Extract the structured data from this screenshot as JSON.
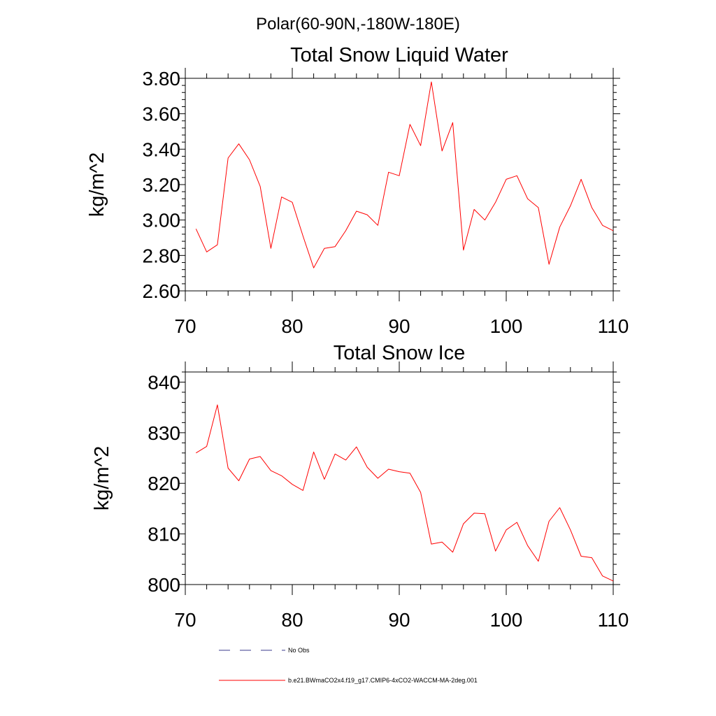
{
  "figure": {
    "title": "Polar(60-90N,-180W-180E)"
  },
  "legend": {
    "placement": "bottom-left",
    "entries": [
      {
        "label": "No Obs",
        "style": "dashed",
        "color": "#3a3a8c"
      },
      {
        "label": "b.e21.BWmaCO2x4.f19_g17.CMIP6-4xCO2-WACCM-MA-2deg.001",
        "style": "solid",
        "color": "#ff0000"
      }
    ]
  },
  "chart_data": [
    {
      "type": "line",
      "title": "Total Snow Liquid Water",
      "xlabel": "",
      "ylabel": "kg/m^2",
      "xlim": [
        70,
        110
      ],
      "ylim": [
        2.6,
        3.8
      ],
      "xticks": [
        "70",
        "80",
        "90",
        "100",
        "110"
      ],
      "yticks": [
        "2.60",
        "2.80",
        "3.00",
        "3.20",
        "3.40",
        "3.60",
        "3.80"
      ],
      "grid": false,
      "series": [
        {
          "color": "#ff0000",
          "x": [
            71,
            72,
            73,
            74,
            75,
            76,
            77,
            78,
            79,
            80,
            81,
            82,
            83,
            84,
            85,
            86,
            87,
            88,
            89,
            90,
            91,
            92,
            93,
            94,
            95,
            96,
            97,
            98,
            99,
            100,
            101,
            102,
            103,
            104,
            105,
            106,
            107,
            108,
            109,
            110
          ],
          "values": [
            2.95,
            2.82,
            2.86,
            3.35,
            3.43,
            3.34,
            3.19,
            2.84,
            3.13,
            3.1,
            2.91,
            2.73,
            2.84,
            2.85,
            2.94,
            3.05,
            3.03,
            2.97,
            3.27,
            3.25,
            3.54,
            3.42,
            3.78,
            3.39,
            3.55,
            2.83,
            3.06,
            3.0,
            3.1,
            3.23,
            3.25,
            3.12,
            3.07,
            2.75,
            2.96,
            3.08,
            3.23,
            3.07,
            2.97,
            2.94
          ]
        }
      ]
    },
    {
      "type": "line",
      "title": "Total Snow Ice",
      "xlabel": "",
      "ylabel": "kg/m^2",
      "xlim": [
        70,
        110
      ],
      "ylim": [
        800,
        842
      ],
      "xticks": [
        "70",
        "80",
        "90",
        "100",
        "110"
      ],
      "yticks": [
        "800",
        "810",
        "820",
        "830",
        "840"
      ],
      "grid": false,
      "series": [
        {
          "color": "#ff0000",
          "x": [
            71,
            72,
            73,
            74,
            75,
            76,
            77,
            78,
            79,
            80,
            81,
            82,
            83,
            84,
            85,
            86,
            87,
            88,
            89,
            90,
            91,
            92,
            93,
            94,
            95,
            96,
            97,
            98,
            99,
            100,
            101,
            102,
            103,
            104,
            105,
            106,
            107,
            108,
            109,
            110
          ],
          "values": [
            826.0,
            827.3,
            835.5,
            823.0,
            820.5,
            824.8,
            825.3,
            822.5,
            821.5,
            819.8,
            818.6,
            826.2,
            820.8,
            825.8,
            824.6,
            827.2,
            823.2,
            821.0,
            822.8,
            822.3,
            822.0,
            818.2,
            808.0,
            808.4,
            806.4,
            812.0,
            814.1,
            814.0,
            806.6,
            810.8,
            812.3,
            807.7,
            804.6,
            812.5,
            815.2,
            810.8,
            805.6,
            805.3,
            801.7,
            800.7
          ]
        }
      ]
    }
  ]
}
